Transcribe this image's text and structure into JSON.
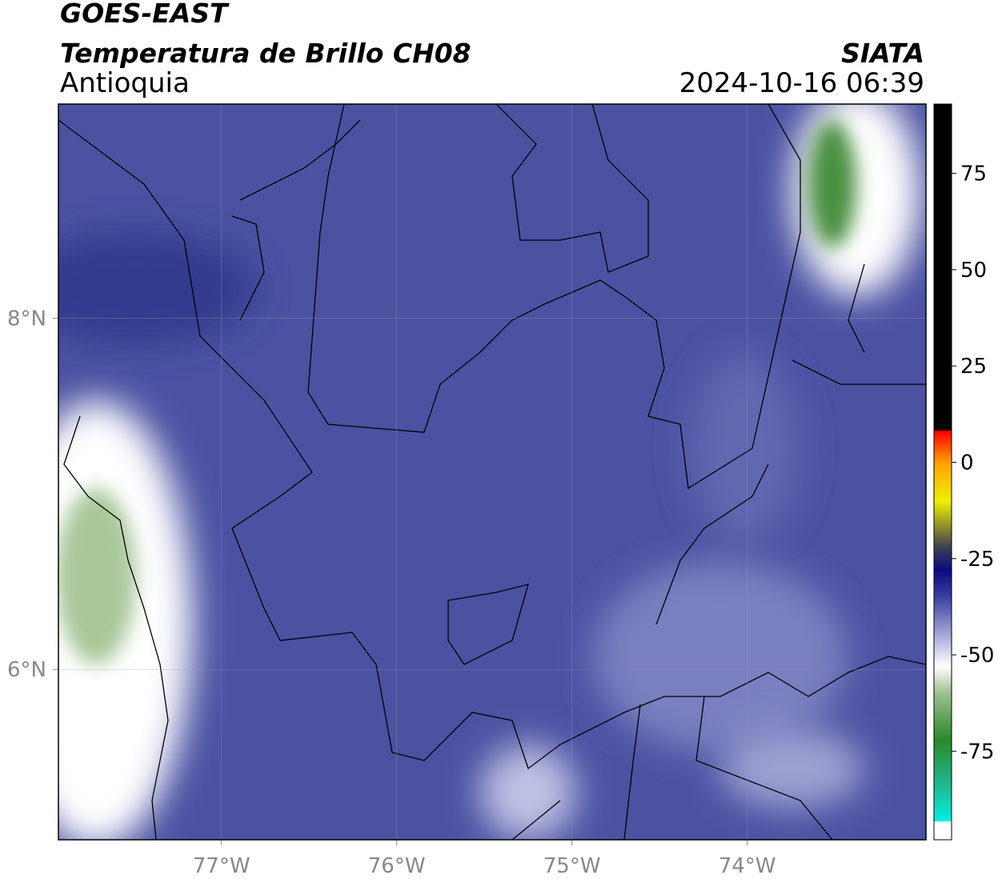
{
  "header": {
    "title": "GOES-EAST",
    "subtitle": "Temperatura de Brillo CH08",
    "region": "Antioquia",
    "source": "SIATA",
    "datetime": "2024-10-16 06:39"
  },
  "map": {
    "xlim": [
      -77.93,
      -72.98
    ],
    "ylim": [
      5.03,
      9.22
    ],
    "xticks": [
      {
        "value": -77,
        "label": "77°W"
      },
      {
        "value": -76,
        "label": "76°W"
      },
      {
        "value": -75,
        "label": "75°W"
      },
      {
        "value": -74,
        "label": "74°W"
      }
    ],
    "yticks": [
      {
        "value": 6,
        "label": "6°N"
      },
      {
        "value": 8,
        "label": "8°N"
      }
    ],
    "grid": true
  },
  "colorbar": {
    "lim": [
      -98,
      93
    ],
    "ticks": [
      -75,
      -50,
      -25,
      0,
      25,
      50,
      75
    ],
    "stops": [
      {
        "value": -98,
        "color": "#ffffff"
      },
      {
        "value": -93.5,
        "color": "#ffffff"
      },
      {
        "value": -93,
        "color": "#00f0e0"
      },
      {
        "value": -84,
        "color": "#20b890"
      },
      {
        "value": -72,
        "color": "#2a8a2a"
      },
      {
        "value": -60,
        "color": "#9cc090"
      },
      {
        "value": -53,
        "color": "#ffffff"
      },
      {
        "value": -45,
        "color": "#a8aad8"
      },
      {
        "value": -35,
        "color": "#3a40a0"
      },
      {
        "value": -28,
        "color": "#0a0a80"
      },
      {
        "value": -22,
        "color": "#404050"
      },
      {
        "value": -10,
        "color": "#f0f000"
      },
      {
        "value": 0,
        "color": "#ffa000"
      },
      {
        "value": 8,
        "color": "#ff0000"
      },
      {
        "value": 8.5,
        "color": "#000000"
      },
      {
        "value": 93,
        "color": "#000000"
      }
    ]
  }
}
